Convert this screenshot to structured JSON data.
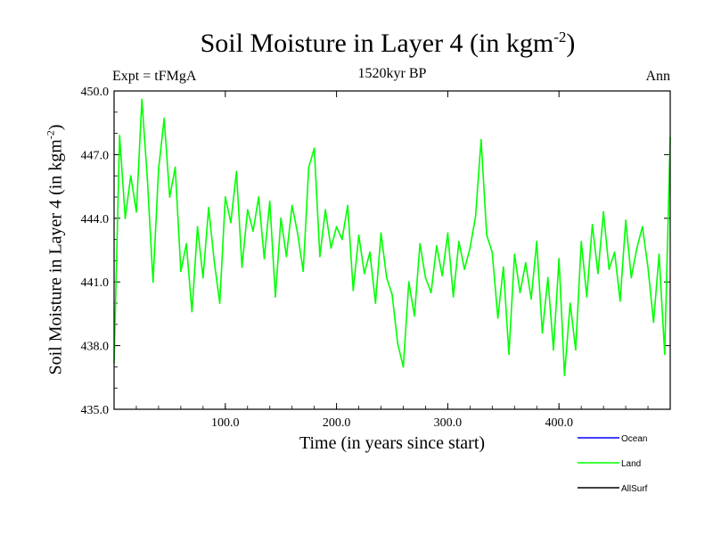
{
  "chart_data": {
    "type": "line",
    "title": "Soil Moisture in Layer 4 (in kgm",
    "title_superscript": "-2",
    "title_suffix": ")",
    "subtitle": "1520kyr BP",
    "left_label": "Expt = tFMgA",
    "right_label": "Ann",
    "xlabel": "Time (in years since start)",
    "ylabel": "Soil Moisture in Layer 4 (in kgm",
    "ylabel_superscript": "-2",
    "ylabel_suffix": ")",
    "xlim": [
      0,
      500
    ],
    "ylim": [
      435.0,
      450.0
    ],
    "xticks": [
      100,
      200,
      300,
      400
    ],
    "xtick_labels": [
      "100.0",
      "200.0",
      "300.0",
      "400.0"
    ],
    "yticks": [
      435,
      438,
      441,
      444,
      447,
      450
    ],
    "ytick_labels": [
      "435.0",
      "438.0",
      "441.0",
      "444.0",
      "447.0",
      "450.0"
    ],
    "grid": false,
    "legend_position": "bottom-right",
    "legend": [
      {
        "name": "Ocean",
        "color": "#0000ff"
      },
      {
        "name": "Land",
        "color": "#00ff00"
      },
      {
        "name": "AllSurf",
        "color": "#000000"
      }
    ],
    "series": [
      {
        "name": "Land",
        "color": "#00ff00",
        "x": [
          0,
          5,
          10,
          15,
          20,
          25,
          30,
          35,
          40,
          45,
          50,
          55,
          60,
          65,
          70,
          75,
          80,
          85,
          90,
          95,
          100,
          105,
          110,
          115,
          120,
          125,
          130,
          135,
          140,
          145,
          150,
          155,
          160,
          165,
          170,
          175,
          180,
          185,
          190,
          195,
          200,
          205,
          210,
          215,
          220,
          225,
          230,
          235,
          240,
          245,
          250,
          255,
          260,
          265,
          270,
          275,
          280,
          285,
          290,
          295,
          300,
          305,
          310,
          315,
          320,
          325,
          330,
          335,
          340,
          345,
          350,
          355,
          360,
          365,
          370,
          375,
          380,
          385,
          390,
          395,
          400,
          405,
          410,
          415,
          420,
          425,
          430,
          435,
          440,
          445,
          450,
          455,
          460,
          465,
          470,
          475,
          480,
          485,
          490,
          495,
          500
        ],
        "values": [
          437.2,
          447.9,
          444.0,
          446.0,
          444.3,
          449.6,
          445.8,
          441.0,
          446.3,
          448.7,
          445.0,
          446.4,
          441.5,
          442.8,
          439.6,
          443.6,
          441.2,
          444.5,
          442.0,
          440.0,
          445.0,
          443.8,
          446.2,
          441.7,
          444.4,
          443.4,
          445.0,
          442.1,
          444.8,
          440.3,
          444.0,
          442.2,
          444.6,
          443.3,
          441.5,
          446.4,
          447.3,
          442.2,
          444.4,
          442.6,
          443.6,
          443.0,
          444.6,
          440.6,
          443.2,
          441.4,
          442.4,
          440.0,
          443.3,
          441.2,
          440.4,
          438.1,
          437.0,
          441.0,
          439.4,
          442.8,
          441.2,
          440.5,
          442.7,
          441.3,
          443.3,
          440.3,
          442.9,
          441.6,
          442.6,
          444.1,
          447.7,
          443.2,
          442.4,
          439.3,
          441.7,
          437.6,
          442.3,
          440.5,
          441.9,
          440.2,
          442.9,
          438.6,
          441.2,
          437.8,
          442.1,
          436.6,
          440.0,
          437.8,
          442.9,
          440.3,
          443.7,
          441.4,
          444.3,
          441.6,
          442.4,
          440.1,
          443.9,
          441.2,
          442.6,
          443.6,
          441.7,
          439.1,
          442.3,
          437.6,
          447.8
        ]
      }
    ]
  }
}
